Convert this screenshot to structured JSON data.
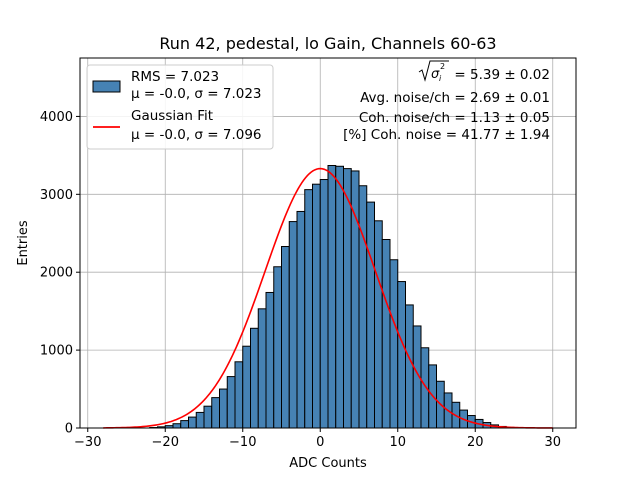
{
  "chart_data": {
    "type": "bar",
    "title": "Run 42, pedestal, lo Gain, Channels 60-63",
    "xlabel": "ADC Counts",
    "ylabel": "Entries",
    "xlim": [
      -31,
      33
    ],
    "ylim": [
      0,
      4750
    ],
    "grid": true,
    "bin_width": 1,
    "bin_edges_start": -22,
    "x_ticks": [
      -30,
      -20,
      -10,
      0,
      10,
      20,
      30
    ],
    "y_ticks": [
      0,
      1000,
      2000,
      3000,
      4000
    ],
    "histogram_values": [
      6,
      15,
      30,
      55,
      95,
      140,
      200,
      280,
      390,
      500,
      660,
      850,
      1050,
      1280,
      1530,
      1740,
      2070,
      2330,
      2650,
      2780,
      3060,
      3130,
      3190,
      3370,
      3360,
      3330,
      3300,
      3110,
      2900,
      2660,
      2420,
      2160,
      1880,
      1580,
      1310,
      1030,
      810,
      600,
      450,
      330,
      230,
      160,
      110,
      70,
      40,
      20,
      8
    ],
    "fit": {
      "name": "Gaussian Fit",
      "mu": 0.0,
      "sigma": 7.096,
      "amplitude": 3330,
      "x_range": [
        -28,
        30
      ],
      "color": "#ff0000"
    },
    "legend": {
      "position": "top-left",
      "entries": [
        {
          "label": "RMS = 7.023",
          "sublabel": "μ = -0.0, σ = 7.023",
          "kind": "histogram"
        },
        {
          "label": "Gaussian Fit",
          "sublabel": "μ = -0.0, σ = 7.096",
          "kind": "fit"
        }
      ]
    },
    "annotations": {
      "sigma_total": "= 5.39 ± 0.02",
      "avg_noise": "Avg. noise/ch = 2.69 ± 0.01",
      "coh_noise": "Coh. noise/ch = 1.13 ± 0.05",
      "pct_coh_noise": "[%] Coh. noise = 41.77 ± 1.94"
    }
  },
  "colors": {
    "bar": "#4682b4",
    "fit": "#ff0000",
    "grid": "#b0b0b0"
  },
  "symbols": {
    "sqrt_sigma": "σ",
    "sub_i": "i",
    "sup_2": "2"
  }
}
